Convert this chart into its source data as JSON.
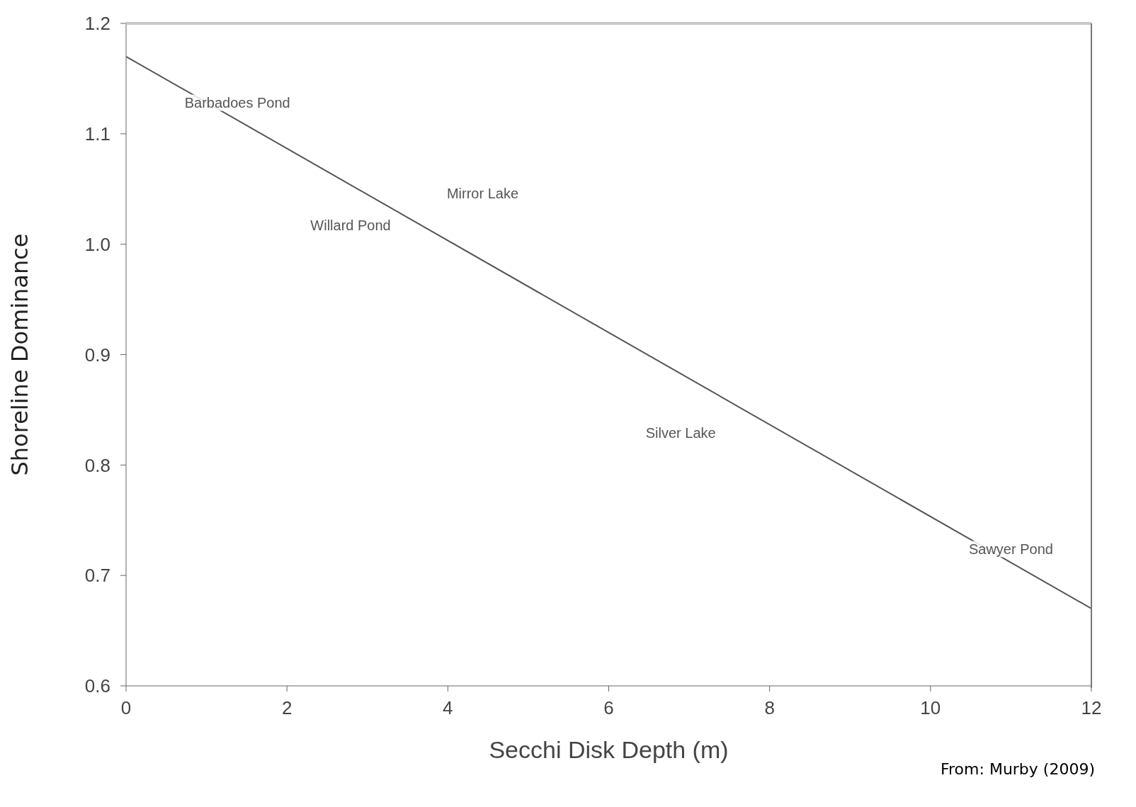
{
  "chart_data": {
    "type": "line",
    "xlabel": "Secchi Disk Depth (m)",
    "ylabel": "Shoreline Dominance",
    "series": [
      {
        "type": "line",
        "x": [
          0,
          12
        ],
        "values": [
          1.17,
          0.67
        ],
        "color": "#555555"
      }
    ],
    "xlim": [
      0,
      12
    ],
    "xticks": [
      0,
      2,
      4,
      6,
      8,
      10,
      12
    ],
    "ylim": [
      0.6,
      1.2
    ],
    "yticks": [
      {
        "value": 0.6,
        "label": "0.6"
      },
      {
        "value": 0.7,
        "label": "0.7"
      },
      {
        "value": 0.8,
        "label": "0.8"
      },
      {
        "value": 0.9,
        "label": "0.9"
      },
      {
        "value": 1,
        "label": "1.0"
      },
      {
        "value": 1.1,
        "label": "1.1"
      },
      {
        "value": 1.2,
        "label": "1.2"
      }
    ],
    "grid": false,
    "legend": false,
    "marker": "none",
    "line_style": "solid",
    "annotations": [
      "Barbadoes Pond",
      "Mirror Lake",
      "Willard Pond",
      "Silver Lake",
      "Sawyer Pond",
      "From: Murby (2009)"
    ]
  }
}
